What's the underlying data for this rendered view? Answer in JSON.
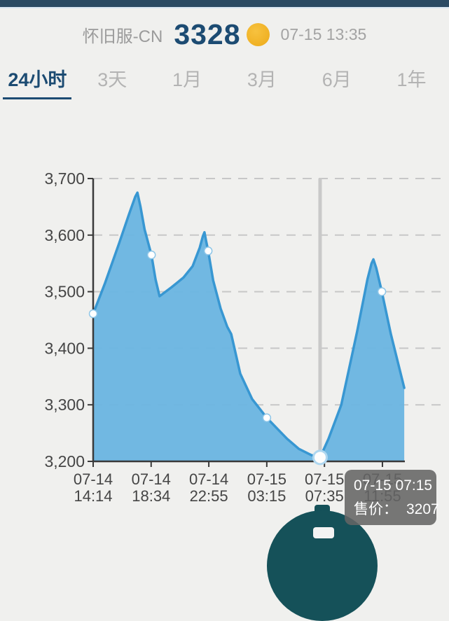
{
  "header": {
    "server_label": "怀旧服-CN",
    "price": "3328",
    "timestamp": "07-15 13:35"
  },
  "tabs": [
    {
      "label": "24小时",
      "active": true
    },
    {
      "label": "3天",
      "active": false
    },
    {
      "label": "1月",
      "active": false
    },
    {
      "label": "3月",
      "active": false
    },
    {
      "label": "6月",
      "active": false
    },
    {
      "label": "1年",
      "active": false
    }
  ],
  "tooltip": {
    "time": "07-15 07:15",
    "label": "售价：",
    "value": "3207"
  },
  "colors": {
    "accent_navy": "#1c4b72",
    "coin_gold": "#f2b52b",
    "fab_teal": "#155159",
    "topbar_navy": "#2b4a63"
  },
  "chart_data": {
    "type": "area",
    "title": "",
    "xlabel": "",
    "ylabel": "",
    "ylim": [
      3200,
      3700
    ],
    "yticks": [
      3200,
      3300,
      3400,
      3500,
      3600,
      3700
    ],
    "grid": true,
    "xticks": [
      {
        "x": 0.0,
        "date": "07-14",
        "time": "14:14"
      },
      {
        "x": 0.186,
        "date": "07-14",
        "time": "18:34"
      },
      {
        "x": 0.371,
        "date": "07-14",
        "time": "22:55"
      },
      {
        "x": 0.557,
        "date": "07-15",
        "time": "03:15"
      },
      {
        "x": 0.742,
        "date": "07-15",
        "time": "07:35"
      },
      {
        "x": 0.928,
        "date": "07-15",
        "time": "11:55"
      }
    ],
    "points": [
      [
        0.0,
        3461
      ],
      [
        0.038,
        3515
      ],
      [
        0.083,
        3585
      ],
      [
        0.115,
        3637
      ],
      [
        0.135,
        3668
      ],
      [
        0.142,
        3675
      ],
      [
        0.152,
        3650
      ],
      [
        0.165,
        3610
      ],
      [
        0.187,
        3565
      ],
      [
        0.2,
        3522
      ],
      [
        0.213,
        3492
      ],
      [
        0.252,
        3508
      ],
      [
        0.29,
        3525
      ],
      [
        0.319,
        3545
      ],
      [
        0.342,
        3578
      ],
      [
        0.352,
        3598
      ],
      [
        0.357,
        3605
      ],
      [
        0.363,
        3588
      ],
      [
        0.369,
        3572
      ],
      [
        0.385,
        3520
      ],
      [
        0.409,
        3470
      ],
      [
        0.43,
        3438
      ],
      [
        0.443,
        3425
      ],
      [
        0.472,
        3355
      ],
      [
        0.51,
        3310
      ],
      [
        0.557,
        3277
      ],
      [
        0.59,
        3258
      ],
      [
        0.622,
        3240
      ],
      [
        0.66,
        3222
      ],
      [
        0.7,
        3211
      ],
      [
        0.728,
        3207
      ],
      [
        0.755,
        3240
      ],
      [
        0.796,
        3300
      ],
      [
        0.847,
        3430
      ],
      [
        0.88,
        3522
      ],
      [
        0.893,
        3550
      ],
      [
        0.899,
        3557
      ],
      [
        0.908,
        3542
      ],
      [
        0.926,
        3500
      ],
      [
        0.955,
        3425
      ],
      [
        0.998,
        3330
      ]
    ],
    "markers": [
      [
        0.0,
        3461
      ],
      [
        0.187,
        3565
      ],
      [
        0.369,
        3572
      ],
      [
        0.557,
        3277
      ],
      [
        0.926,
        3500
      ]
    ],
    "active_point": {
      "x": 0.728,
      "v": 3207,
      "time": "07-15 07:15",
      "value": 3207
    },
    "colors": {
      "fill": "#6cb6e1",
      "stroke": "#3897d2",
      "cursor": "#c9c9c9",
      "axis": "#3a3a3a",
      "grid": "#c7c7c7",
      "tick_text": "#454545"
    }
  }
}
